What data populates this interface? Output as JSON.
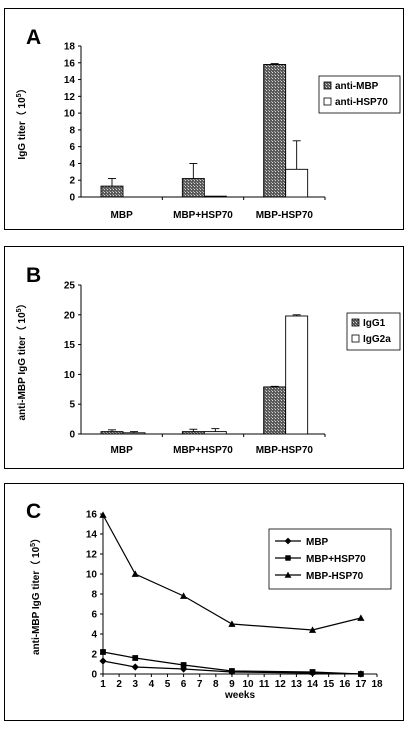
{
  "chart_data": [
    {
      "panel_letter": "A",
      "type": "bar",
      "categories": [
        "MBP",
        "MBP+HSP70",
        "MBP-HSP70"
      ],
      "series": [
        {
          "name": "anti-MBP",
          "values": [
            1.3,
            2.2,
            15.8
          ],
          "errors": [
            0.9,
            1.8,
            0.1
          ],
          "fill": "hatch"
        },
        {
          "name": "anti-HSP70",
          "values": [
            0.0,
            0.1,
            3.3
          ],
          "errors": [
            0.0,
            0.0,
            3.4
          ],
          "fill": "white"
        }
      ],
      "ylabel": "IgG titer（ 10",
      "ylabel_exp": "5",
      "ylabel_close": "）",
      "yticks": [
        "0",
        "2",
        "4",
        "6",
        "8",
        "10",
        "12",
        "14",
        "16",
        "18"
      ],
      "ylim": [
        0,
        18
      ],
      "legend": "right"
    },
    {
      "panel_letter": "B",
      "type": "bar",
      "categories": [
        "MBP",
        "MBP+HSP70",
        "MBP-HSP70"
      ],
      "series": [
        {
          "name": "IgG1",
          "values": [
            0.4,
            0.4,
            7.9
          ],
          "errors": [
            0.3,
            0.4,
            0.1
          ],
          "fill": "hatch"
        },
        {
          "name": "IgG2a",
          "values": [
            0.2,
            0.4,
            19.8
          ],
          "errors": [
            0.2,
            0.5,
            0.2
          ],
          "fill": "white"
        }
      ],
      "ylabel": "anti-MBP IgG titer（ 10",
      "ylabel_exp": "5",
      "ylabel_close": "）",
      "yticks": [
        "0",
        "5",
        "10",
        "15",
        "20",
        "25"
      ],
      "ylim": [
        0,
        25
      ],
      "legend": "right"
    },
    {
      "panel_letter": "C",
      "type": "line",
      "x_ticks": [
        "1",
        "2",
        "3",
        "4",
        "5",
        "6",
        "7",
        "8",
        "9",
        "10",
        "11",
        "12",
        "13",
        "14",
        "15",
        "16",
        "17",
        "18"
      ],
      "xlim": [
        1,
        18
      ],
      "xlabel": "weeks",
      "ylabel": "anti-MBP IgG titer（ 10",
      "ylabel_exp": "5",
      "ylabel_close": "）",
      "yticks": [
        "0",
        "2",
        "4",
        "6",
        "8",
        "10",
        "12",
        "14",
        "16"
      ],
      "ylim": [
        0,
        16
      ],
      "series": [
        {
          "name": "MBP",
          "marker": "diamond",
          "x": [
            1,
            3,
            6,
            9,
            14,
            17
          ],
          "y": [
            1.3,
            0.7,
            0.5,
            0.2,
            0.1,
            0.0
          ]
        },
        {
          "name": "MBP+HSP70",
          "marker": "square",
          "x": [
            1,
            3,
            6,
            9,
            14,
            17
          ],
          "y": [
            2.2,
            1.6,
            0.9,
            0.3,
            0.2,
            0.0
          ]
        },
        {
          "name": "MBP-HSP70",
          "marker": "triangle",
          "x": [
            1,
            3,
            6,
            9,
            14,
            17
          ],
          "y": [
            15.9,
            10.0,
            7.8,
            5.0,
            4.4,
            5.6
          ]
        }
      ],
      "legend": "right"
    }
  ]
}
